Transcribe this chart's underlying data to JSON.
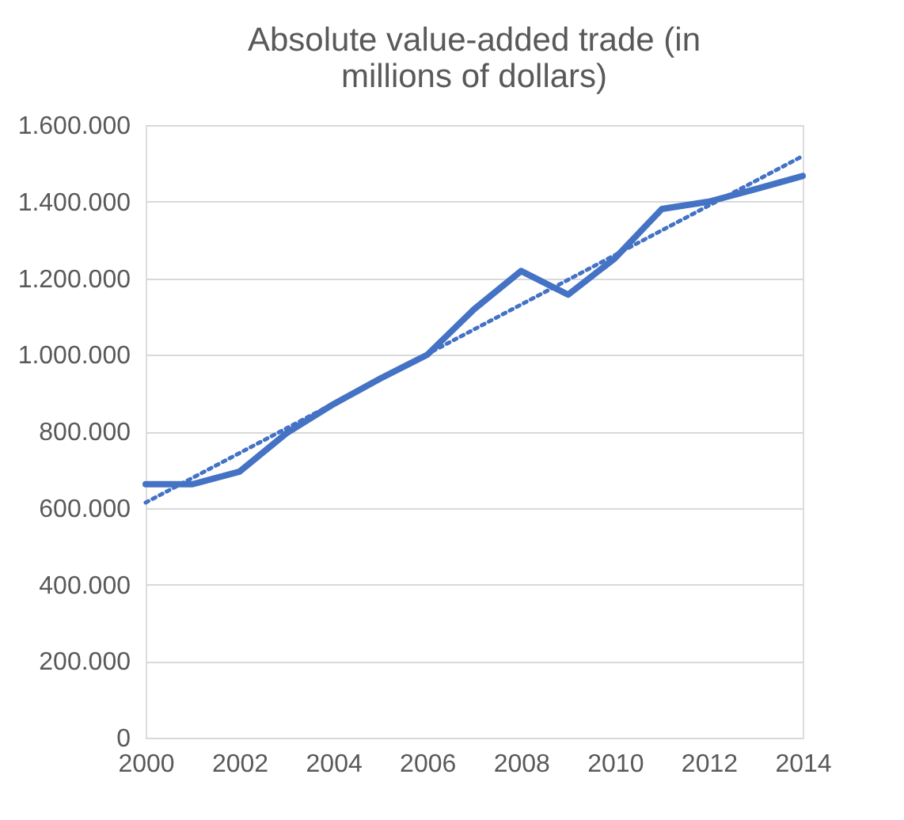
{
  "chart_data": {
    "type": "line",
    "title": "Absolute value-added trade (in millions of dollars)",
    "x": [
      2000,
      2001,
      2002,
      2003,
      2004,
      2005,
      2006,
      2007,
      2008,
      2009,
      2010,
      2011,
      2012,
      2013,
      2014
    ],
    "series": [
      {
        "color": "#4472c4",
        "line_style": "solid",
        "values": [
          662000,
          662000,
          695000,
          795000,
          871000,
          938000,
          1000000,
          1119000,
          1219000,
          1157000,
          1252000,
          1381000,
          1400000,
          1433000,
          1467000
        ]
      },
      {
        "type": "line",
        "color": "#4472c4",
        "line_style": "dotted",
        "x": [
          2000,
          2014
        ],
        "values": [
          614000,
          1519000
        ]
      }
    ],
    "xlim": [
      2000,
      2014
    ],
    "xticks": [
      2000,
      2002,
      2004,
      2006,
      2008,
      2010,
      2012,
      2014
    ],
    "ylim": [
      0,
      1600000
    ],
    "yticks": [
      0,
      {
        "value": 200000,
        "label": "200.000"
      },
      {
        "value": 400000,
        "label": "400.000"
      },
      {
        "value": 600000,
        "label": "600.000"
      },
      {
        "value": 800000,
        "label": "800.000"
      },
      {
        "value": 1000000,
        "label": "1.000.000"
      },
      {
        "value": 1200000,
        "label": "1.200.000"
      },
      {
        "value": 1400000,
        "label": "1.400.000"
      },
      {
        "value": 1600000,
        "label": "1.600.000"
      }
    ],
    "grid": "y",
    "marker": "none"
  }
}
